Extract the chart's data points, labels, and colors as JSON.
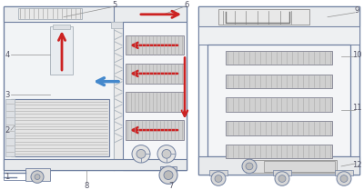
{
  "fig_width": 4.0,
  "fig_height": 2.09,
  "dpi": 100,
  "bg_color": "#ffffff",
  "line_color": "#b0b8c0",
  "dark_line": "#7080a0",
  "arrow_red": "#cc2222",
  "arrow_blue": "#4488cc",
  "label_color": "#555566",
  "tray_fill": "#d0d0d0",
  "tray_stripe": "#aaaaaa",
  "coil_fill": "#e0e0e0",
  "wheel_fill": "#e0e0e0",
  "panel_fill": "#f2f4f6"
}
